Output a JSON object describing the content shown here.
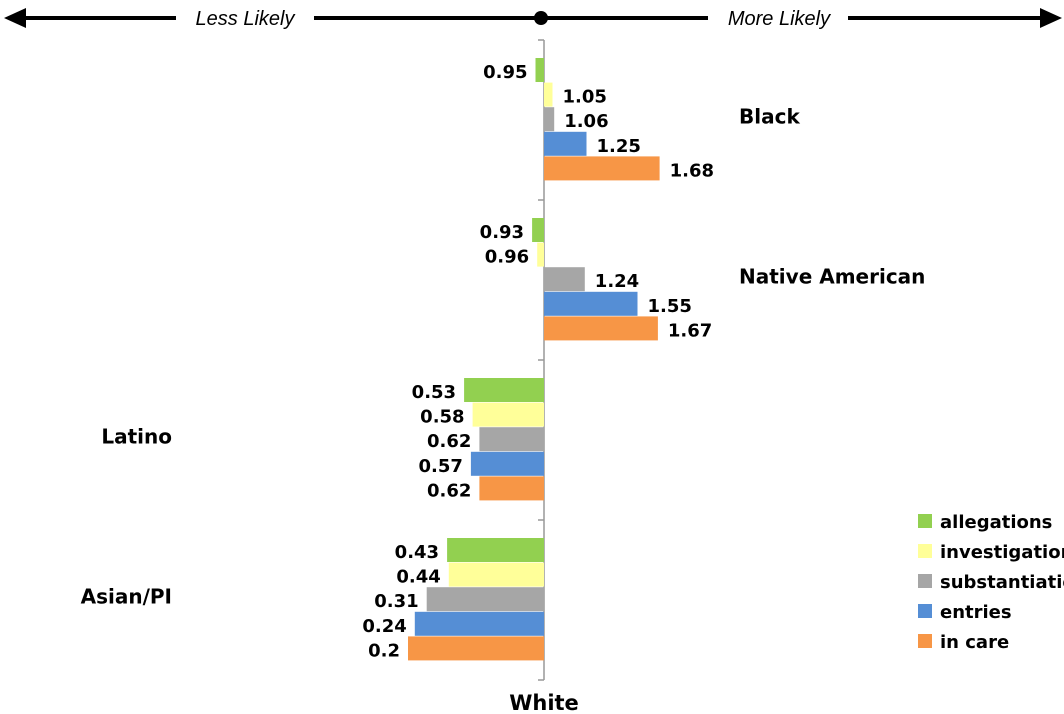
{
  "scale": {
    "less_label": "Less Likely",
    "more_label": "More Likely"
  },
  "chart_data": {
    "type": "bar",
    "orientation": "horizontal",
    "baseline_label": "White",
    "baseline_value": 1,
    "xlim": [
      0,
      2.2
    ],
    "categories": [
      "Black",
      "Native American",
      "Latino",
      "Asian/PI"
    ],
    "series": [
      {
        "name": "allegations",
        "color": "#92d050",
        "values": [
          0.95,
          0.93,
          0.53,
          0.43
        ]
      },
      {
        "name": "investigations",
        "color": "#ffff99",
        "values": [
          1.05,
          0.96,
          0.58,
          0.44
        ]
      },
      {
        "name": "substantiations",
        "color": "#a6a6a6",
        "values": [
          1.06,
          1.24,
          0.62,
          0.31
        ]
      },
      {
        "name": "entries",
        "color": "#558ed5",
        "values": [
          1.25,
          1.55,
          0.57,
          0.24
        ]
      },
      {
        "name": "in care",
        "color": "#f79646",
        "values": [
          1.68,
          1.67,
          0.62,
          0.2
        ]
      }
    ],
    "legend_position": "bottom-right"
  }
}
